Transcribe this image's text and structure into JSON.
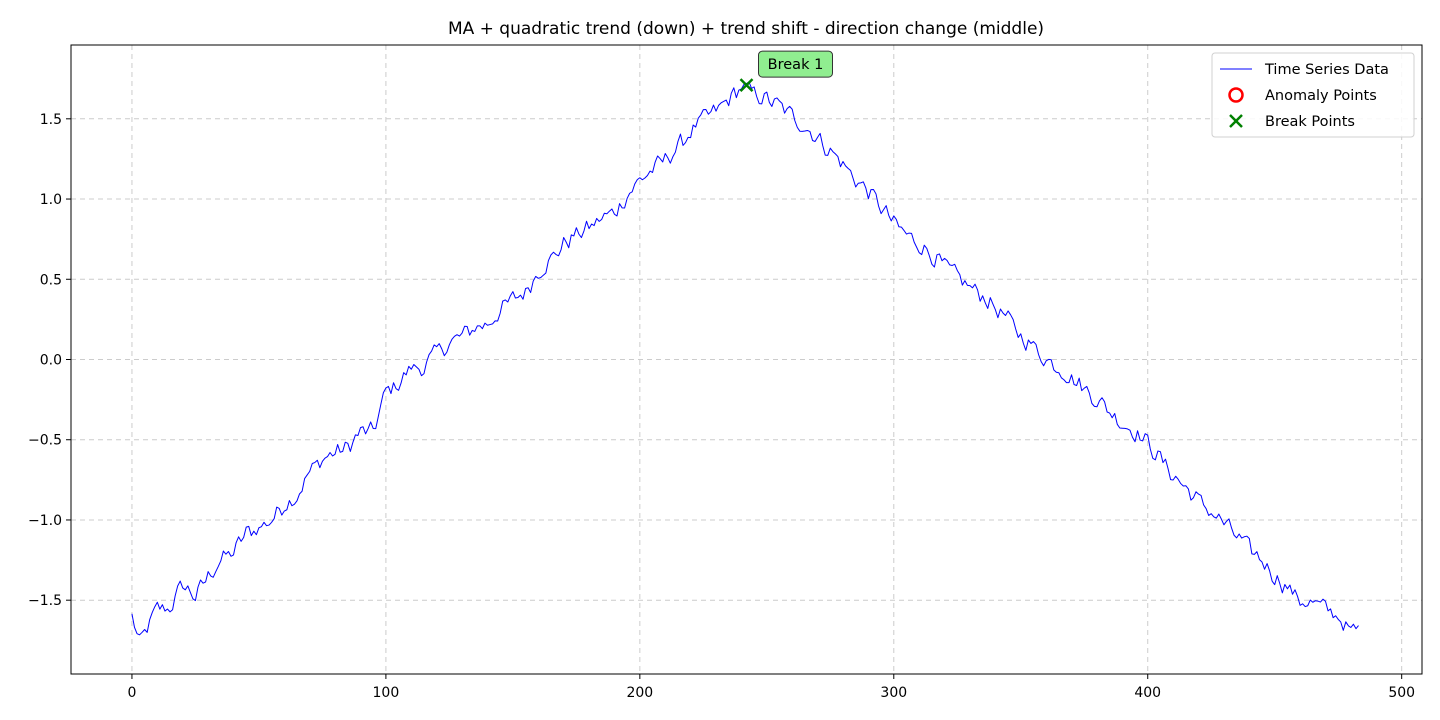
{
  "chart_data": {
    "type": "line",
    "title": "MA + quadratic trend (down) + trend shift - direction change (middle)",
    "xlabel": "",
    "ylabel": "",
    "xlim": [
      -24,
      508
    ],
    "ylim": [
      -1.96,
      1.96
    ],
    "xticks": [
      0,
      100,
      200,
      300,
      400,
      500
    ],
    "xtick_labels": [
      "0",
      "100",
      "200",
      "300",
      "400",
      "500"
    ],
    "yticks": [
      -1.5,
      -1.0,
      -0.5,
      0.0,
      0.5,
      1.0,
      1.5
    ],
    "ytick_labels": [
      "−1.5",
      "−1.0",
      "−0.5",
      "0.0",
      "0.5",
      "1.0",
      "1.5"
    ],
    "grid": true,
    "legend_position": "top-right",
    "series": [
      {
        "name": "Time Series Data",
        "color": "#0000ff",
        "n_points": 484,
        "anchors": [
          [
            0,
            -1.6
          ],
          [
            3,
            -1.77
          ],
          [
            10,
            -1.55
          ],
          [
            15,
            -1.55
          ],
          [
            20,
            -1.4
          ],
          [
            25,
            -1.48
          ],
          [
            30,
            -1.35
          ],
          [
            35,
            -1.25
          ],
          [
            40,
            -1.2
          ],
          [
            45,
            -1.08
          ],
          [
            50,
            -1.05
          ],
          [
            55,
            -1.0
          ],
          [
            60,
            -0.9
          ],
          [
            65,
            -0.85
          ],
          [
            70,
            -0.7
          ],
          [
            75,
            -0.62
          ],
          [
            80,
            -0.58
          ],
          [
            85,
            -0.55
          ],
          [
            90,
            -0.45
          ],
          [
            95,
            -0.45
          ],
          [
            100,
            -0.2
          ],
          [
            105,
            -0.15
          ],
          [
            110,
            -0.05
          ],
          [
            115,
            -0.05
          ],
          [
            120,
            0.05
          ],
          [
            125,
            0.1
          ],
          [
            130,
            0.15
          ],
          [
            135,
            0.2
          ],
          [
            140,
            0.22
          ],
          [
            145,
            0.3
          ],
          [
            150,
            0.38
          ],
          [
            155,
            0.42
          ],
          [
            160,
            0.55
          ],
          [
            165,
            0.62
          ],
          [
            170,
            0.72
          ],
          [
            175,
            0.78
          ],
          [
            180,
            0.82
          ],
          [
            185,
            0.88
          ],
          [
            190,
            0.92
          ],
          [
            195,
            1.02
          ],
          [
            200,
            1.12
          ],
          [
            205,
            1.18
          ],
          [
            210,
            1.25
          ],
          [
            215,
            1.32
          ],
          [
            220,
            1.42
          ],
          [
            225,
            1.5
          ],
          [
            230,
            1.55
          ],
          [
            235,
            1.62
          ],
          [
            240,
            1.7
          ],
          [
            245,
            1.66
          ],
          [
            250,
            1.62
          ],
          [
            255,
            1.58
          ],
          [
            260,
            1.52
          ],
          [
            265,
            1.45
          ],
          [
            270,
            1.38
          ],
          [
            275,
            1.3
          ],
          [
            280,
            1.22
          ],
          [
            285,
            1.12
          ],
          [
            290,
            1.05
          ],
          [
            295,
            0.95
          ],
          [
            300,
            0.85
          ],
          [
            305,
            0.78
          ],
          [
            310,
            0.72
          ],
          [
            315,
            0.65
          ],
          [
            320,
            0.58
          ],
          [
            325,
            0.52
          ],
          [
            330,
            0.45
          ],
          [
            335,
            0.4
          ],
          [
            340,
            0.32
          ],
          [
            345,
            0.25
          ],
          [
            350,
            0.15
          ],
          [
            355,
            0.08
          ],
          [
            360,
            0.0
          ],
          [
            365,
            -0.05
          ],
          [
            370,
            -0.12
          ],
          [
            375,
            -0.18
          ],
          [
            380,
            -0.25
          ],
          [
            385,
            -0.32
          ],
          [
            390,
            -0.4
          ],
          [
            395,
            -0.45
          ],
          [
            400,
            -0.52
          ],
          [
            405,
            -0.62
          ],
          [
            410,
            -0.72
          ],
          [
            415,
            -0.8
          ],
          [
            420,
            -0.88
          ],
          [
            425,
            -0.95
          ],
          [
            430,
            -1.02
          ],
          [
            435,
            -1.1
          ],
          [
            440,
            -1.18
          ],
          [
            445,
            -1.25
          ],
          [
            450,
            -1.35
          ],
          [
            455,
            -1.42
          ],
          [
            460,
            -1.5
          ],
          [
            465,
            -1.52
          ],
          [
            470,
            -1.55
          ],
          [
            475,
            -1.6
          ],
          [
            480,
            -1.7
          ],
          [
            483,
            -1.68
          ]
        ],
        "noise_amplitude": 0.07
      }
    ],
    "legend": [
      {
        "label": "Time Series Data",
        "marker": "line",
        "color": "#0000ff"
      },
      {
        "label": "Anomaly Points",
        "marker": "circle",
        "color": "#ff0000"
      },
      {
        "label": "Break Points",
        "marker": "x",
        "color": "#008000"
      }
    ],
    "break_points": [
      {
        "x": 242,
        "y": 1.71,
        "label": "Break 1",
        "color": "#008000"
      }
    ],
    "annotation_box_color": "#90ee90"
  }
}
